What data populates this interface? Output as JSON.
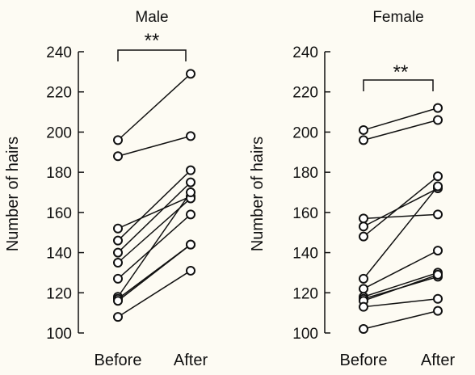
{
  "chart_data": [
    {
      "type": "line",
      "title": "Male",
      "ylabel": "Number of hairs",
      "categories": [
        "Before",
        "After"
      ],
      "ylim": [
        100,
        240
      ],
      "yticks": [
        100,
        120,
        140,
        160,
        180,
        200,
        220,
        240
      ],
      "significance": "**",
      "pairs": [
        [
          196,
          229
        ],
        [
          188,
          198
        ],
        [
          152,
          168
        ],
        [
          146,
          181
        ],
        [
          140,
          175
        ],
        [
          135,
          167
        ],
        [
          127,
          159
        ],
        [
          118,
          170
        ],
        [
          117,
          144
        ],
        [
          116,
          144
        ],
        [
          108,
          131
        ]
      ]
    },
    {
      "type": "line",
      "title": "Female",
      "ylabel": "Number of hairs",
      "categories": [
        "Before",
        "After"
      ],
      "ylim": [
        100,
        240
      ],
      "yticks": [
        100,
        120,
        140,
        160,
        180,
        200,
        220,
        240
      ],
      "significance": "**",
      "pairs": [
        [
          201,
          212
        ],
        [
          196,
          206
        ],
        [
          157,
          159
        ],
        [
          153,
          172
        ],
        [
          148,
          178
        ],
        [
          127,
          173
        ],
        [
          122,
          141
        ],
        [
          118,
          130
        ],
        [
          117,
          128
        ],
        [
          116,
          129
        ],
        [
          113,
          117
        ],
        [
          102,
          111
        ]
      ]
    }
  ]
}
